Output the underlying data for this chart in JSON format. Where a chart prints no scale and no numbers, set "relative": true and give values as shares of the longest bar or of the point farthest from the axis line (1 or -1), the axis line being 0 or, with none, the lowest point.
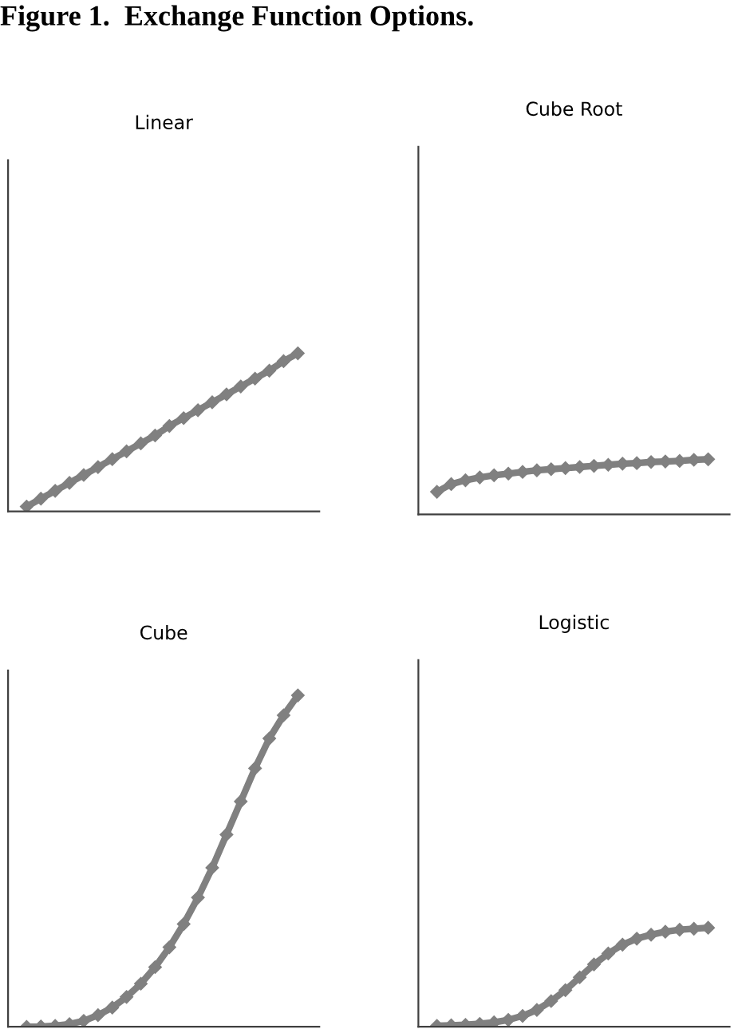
{
  "chart_data": [
    {
      "type": "line",
      "title": "Linear",
      "annotations": [
        "Figure 1.  Exchange Function Options."
      ],
      "relative": true,
      "marker": "diamond",
      "categories": [
        null,
        null,
        null,
        null,
        null,
        null,
        null,
        null,
        null,
        null,
        null,
        null,
        null,
        null,
        null,
        null,
        null,
        null,
        null,
        null
      ],
      "series": [
        {
          "color": "#808080",
          "values": [
            0.03,
            0.08,
            0.13,
            0.18,
            0.23,
            0.28,
            0.33,
            0.38,
            0.43,
            0.48,
            0.54,
            0.59,
            0.64,
            0.69,
            0.74,
            0.79,
            0.84,
            0.89,
            0.95,
            1.0
          ]
        }
      ]
    },
    {
      "type": "line",
      "title": "Cube Root",
      "relative": true,
      "marker": "diamond",
      "categories": [
        null,
        null,
        null,
        null,
        null,
        null,
        null,
        null,
        null,
        null,
        null,
        null,
        null,
        null,
        null,
        null,
        null,
        null,
        null,
        null
      ],
      "series": [
        {
          "color": "#808080",
          "values": [
            0.41,
            0.55,
            0.62,
            0.67,
            0.71,
            0.74,
            0.77,
            0.8,
            0.82,
            0.84,
            0.86,
            0.88,
            0.9,
            0.92,
            0.93,
            0.95,
            0.96,
            0.97,
            0.99,
            1.0
          ]
        }
      ]
    },
    {
      "type": "line",
      "title": "Cube",
      "relative": true,
      "marker": "diamond",
      "categories": [
        null,
        null,
        null,
        null,
        null,
        null,
        null,
        null,
        null,
        null,
        null,
        null,
        null,
        null,
        null,
        null,
        null,
        null,
        null,
        null
      ],
      "series": [
        {
          "color": "#808080",
          "values": [
            0.0,
            0.001,
            0.003,
            0.008,
            0.018,
            0.035,
            0.058,
            0.09,
            0.13,
            0.18,
            0.24,
            0.31,
            0.39,
            0.48,
            0.58,
            0.68,
            0.78,
            0.87,
            0.94,
            1.0
          ]
        }
      ]
    },
    {
      "type": "line",
      "title": "Logistic",
      "relative": true,
      "marker": "diamond",
      "categories": [
        null,
        null,
        null,
        null,
        null,
        null,
        null,
        null,
        null,
        null,
        null,
        null,
        null,
        null,
        null,
        null,
        null,
        null,
        null,
        null
      ],
      "series": [
        {
          "color": "#808080",
          "values": [
            0.01,
            0.015,
            0.02,
            0.03,
            0.045,
            0.07,
            0.11,
            0.17,
            0.26,
            0.37,
            0.5,
            0.63,
            0.74,
            0.83,
            0.89,
            0.93,
            0.96,
            0.98,
            0.99,
            1.0
          ]
        }
      ]
    }
  ]
}
